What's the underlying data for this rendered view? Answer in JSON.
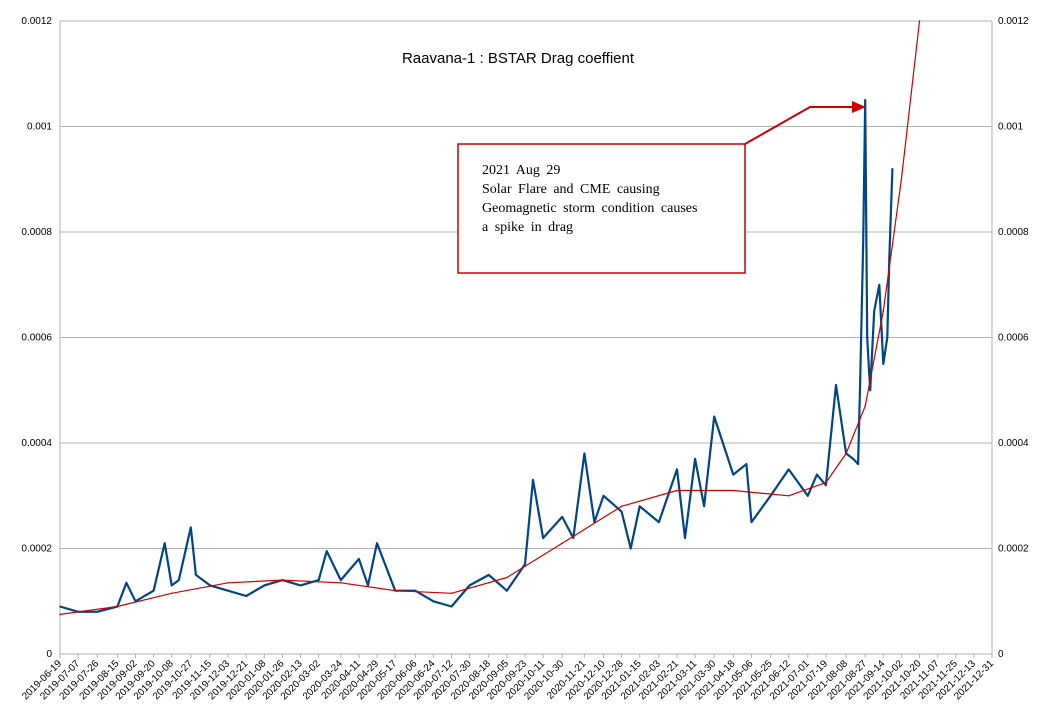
{
  "chart_data": {
    "type": "line",
    "title": "Raavana-1 : BSTAR Drag coeffient",
    "ylim": [
      0,
      0.0012
    ],
    "y_ticks": [
      "0",
      "0.0002",
      "0.0004",
      "0.0006",
      "0.0008",
      "0.001",
      "0.0012"
    ],
    "y_tick_values": [
      0,
      0.0002,
      0.0004,
      0.0006,
      0.0008,
      0.001,
      0.0012
    ],
    "x_ticks": [
      "2019-06-19",
      "2019-07-07",
      "2019-07-26",
      "2019-08-15",
      "2019-09-02",
      "2019-09-20",
      "2019-10-08",
      "2019-10-27",
      "2019-11-15",
      "2019-12-03",
      "2019-12-21",
      "2020-01-08",
      "2020-01-26",
      "2020-02-13",
      "2020-03-02",
      "2020-03-24",
      "2020-04-11",
      "2020-04-29",
      "2020-05-17",
      "2020-06-06",
      "2020-06-24",
      "2020-07-12",
      "2020-07-30",
      "2020-08-18",
      "2020-09-05",
      "2020-09-23",
      "2020-10-11",
      "2020-10-30",
      "2020-11-21",
      "2020-12-10",
      "2020-12-28",
      "2021-01-15",
      "2021-02-03",
      "2021-02-21",
      "2021-03-11",
      "2021-03-30",
      "2021-04-18",
      "2021-05-06",
      "2021-05-25",
      "2021-06-12",
      "2021-07-01",
      "2021-07-19",
      "2021-08-08",
      "2021-08-27",
      "2021-09-14",
      "2021-10-02",
      "2021-10-20",
      "2021-11-07",
      "2021-11-25",
      "2021-12-13",
      "2021-12-31"
    ],
    "grid": true,
    "series": [
      {
        "name": "",
        "color": "#004586",
        "x": [
          "2019-06-19",
          "2019-07-07",
          "2019-07-26",
          "2019-08-15",
          "2019-08-24",
          "2019-09-02",
          "2019-09-20",
          "2019-10-01",
          "2019-10-08",
          "2019-10-15",
          "2019-10-27",
          "2019-11-01",
          "2019-11-15",
          "2019-12-03",
          "2019-12-21",
          "2020-01-08",
          "2020-01-26",
          "2020-02-13",
          "2020-03-02",
          "2020-03-10",
          "2020-03-24",
          "2020-04-11",
          "2020-04-20",
          "2020-04-29",
          "2020-05-17",
          "2020-06-06",
          "2020-06-24",
          "2020-07-12",
          "2020-07-30",
          "2020-08-18",
          "2020-09-05",
          "2020-09-23",
          "2020-10-01",
          "2020-10-11",
          "2020-10-30",
          "2020-11-10",
          "2020-11-21",
          "2020-12-01",
          "2020-12-10",
          "2020-12-28",
          "2021-01-06",
          "2021-01-15",
          "2021-02-03",
          "2021-02-21",
          "2021-03-01",
          "2021-03-11",
          "2021-03-20",
          "2021-03-30",
          "2021-04-18",
          "2021-05-01",
          "2021-05-06",
          "2021-05-25",
          "2021-06-12",
          "2021-07-01",
          "2021-07-10",
          "2021-07-19",
          "2021-07-29",
          "2021-08-08",
          "2021-08-15",
          "2021-08-20",
          "2021-08-22",
          "2021-08-25",
          "2021-08-27",
          "2021-08-29",
          "2021-09-01",
          "2021-09-05",
          "2021-09-10",
          "2021-09-14",
          "2021-09-18",
          "2021-09-20",
          "2021-09-23"
        ],
        "values": [
          9e-05,
          8e-05,
          8e-05,
          9e-05,
          0.000135,
          0.0001,
          0.00012,
          0.00021,
          0.00013,
          0.00014,
          0.00024,
          0.00015,
          0.00013,
          0.00012,
          0.00011,
          0.00013,
          0.00014,
          0.00013,
          0.00014,
          0.000195,
          0.00014,
          0.00018,
          0.00013,
          0.00021,
          0.00012,
          0.00012,
          0.0001,
          9e-05,
          0.00013,
          0.00015,
          0.00012,
          0.00017,
          0.00033,
          0.00022,
          0.00026,
          0.00022,
          0.00038,
          0.00025,
          0.0003,
          0.00027,
          0.0002,
          0.00028,
          0.00025,
          0.00035,
          0.00022,
          0.00037,
          0.00028,
          0.00045,
          0.00034,
          0.00036,
          0.00025,
          0.0003,
          0.00035,
          0.0003,
          0.00034,
          0.00032,
          0.00051,
          0.00038,
          0.00037,
          0.00036,
          0.00052,
          0.00078,
          0.00105,
          0.0006,
          0.0005,
          0.00065,
          0.0007,
          0.00055,
          0.0006,
          0.00075,
          0.00092
        ]
      },
      {
        "name": "",
        "color": "#cc0000",
        "x": [
          "2019-06-19",
          "2019-08-15",
          "2019-10-08",
          "2019-12-03",
          "2020-01-26",
          "2020-03-24",
          "2020-05-17",
          "2020-07-12",
          "2020-09-05",
          "2020-10-30",
          "2020-12-28",
          "2021-02-21",
          "2021-04-18",
          "2021-06-12",
          "2021-07-19",
          "2021-08-08",
          "2021-08-27",
          "2021-09-14",
          "2021-10-02",
          "2021-10-20"
        ],
        "values": [
          7.5e-05,
          9e-05,
          0.000115,
          0.000135,
          0.00014,
          0.000135,
          0.00012,
          0.000115,
          0.000145,
          0.00021,
          0.00028,
          0.00031,
          0.00031,
          0.0003,
          0.000325,
          0.00038,
          0.00047,
          0.00065,
          0.0009,
          0.0012
        ]
      }
    ]
  },
  "annotation": {
    "lines": [
      "2021  Aug  29",
      "Solar  Flare  and  CME  causing",
      "Geomagnetic  storm  condition  causes",
      "a  spike  in  drag"
    ],
    "box_color": "#cc0000",
    "arrow_color": "#cc0000"
  }
}
